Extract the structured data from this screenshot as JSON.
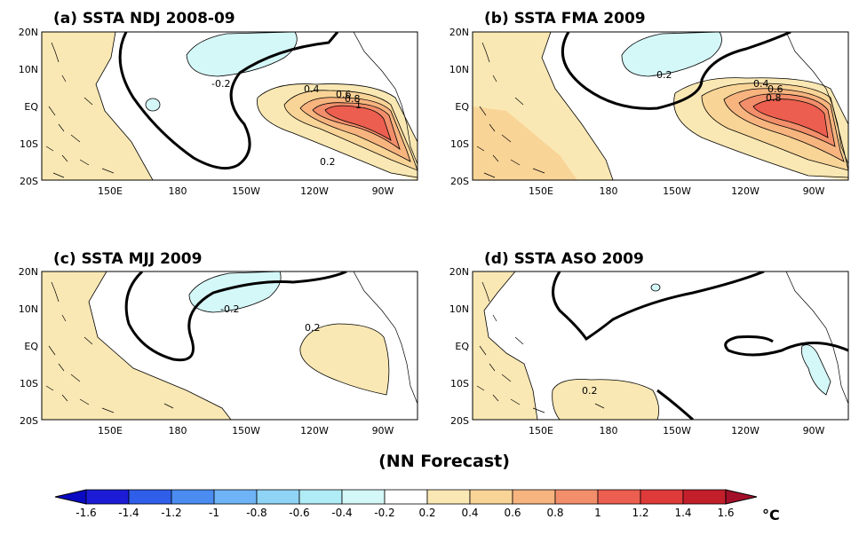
{
  "figure": {
    "caption": "(NN Forecast)",
    "unit": "°C"
  },
  "axes": {
    "lat_labels": [
      "20N",
      "10N",
      "EQ",
      "10S",
      "20S"
    ],
    "lon_labels": [
      "150E",
      "180",
      "150W",
      "120W",
      "90W"
    ]
  },
  "panels": [
    {
      "id": "a",
      "title": "(a) SSTA NDJ 2008-09",
      "contour_labels": [
        "-0.2",
        "0.4",
        "0.6",
        "0.8",
        "1",
        "0.2"
      ]
    },
    {
      "id": "b",
      "title": "(b) SSTA FMA 2009",
      "contour_labels": [
        "-0.2",
        "0.4",
        "0.6",
        "0.8"
      ]
    },
    {
      "id": "c",
      "title": "(c) SSTA MJJ 2009",
      "contour_labels": [
        "-0.2",
        "0.2"
      ]
    },
    {
      "id": "d",
      "title": "(d) SSTA ASO 2009",
      "contour_labels": [
        "0.2"
      ]
    }
  ],
  "colorbar": {
    "ticks": [
      "-1.6",
      "-1.4",
      "-1.2",
      "-1",
      "-0.8",
      "-0.6",
      "-0.4",
      "-0.2",
      "0.2",
      "0.4",
      "0.6",
      "0.8",
      "1",
      "1.2",
      "1.4",
      "1.6"
    ],
    "colors": [
      "#1c1cd6",
      "#2f5ee8",
      "#4a8cf0",
      "#6db3f5",
      "#8fd3f5",
      "#b0ecf5",
      "#d4f7f7",
      "#ffffff",
      "#fae8b4",
      "#f9d497",
      "#f7b47f",
      "#f28e6a",
      "#ec5e4f",
      "#de3a3a",
      "#c21f2b"
    ]
  }
}
